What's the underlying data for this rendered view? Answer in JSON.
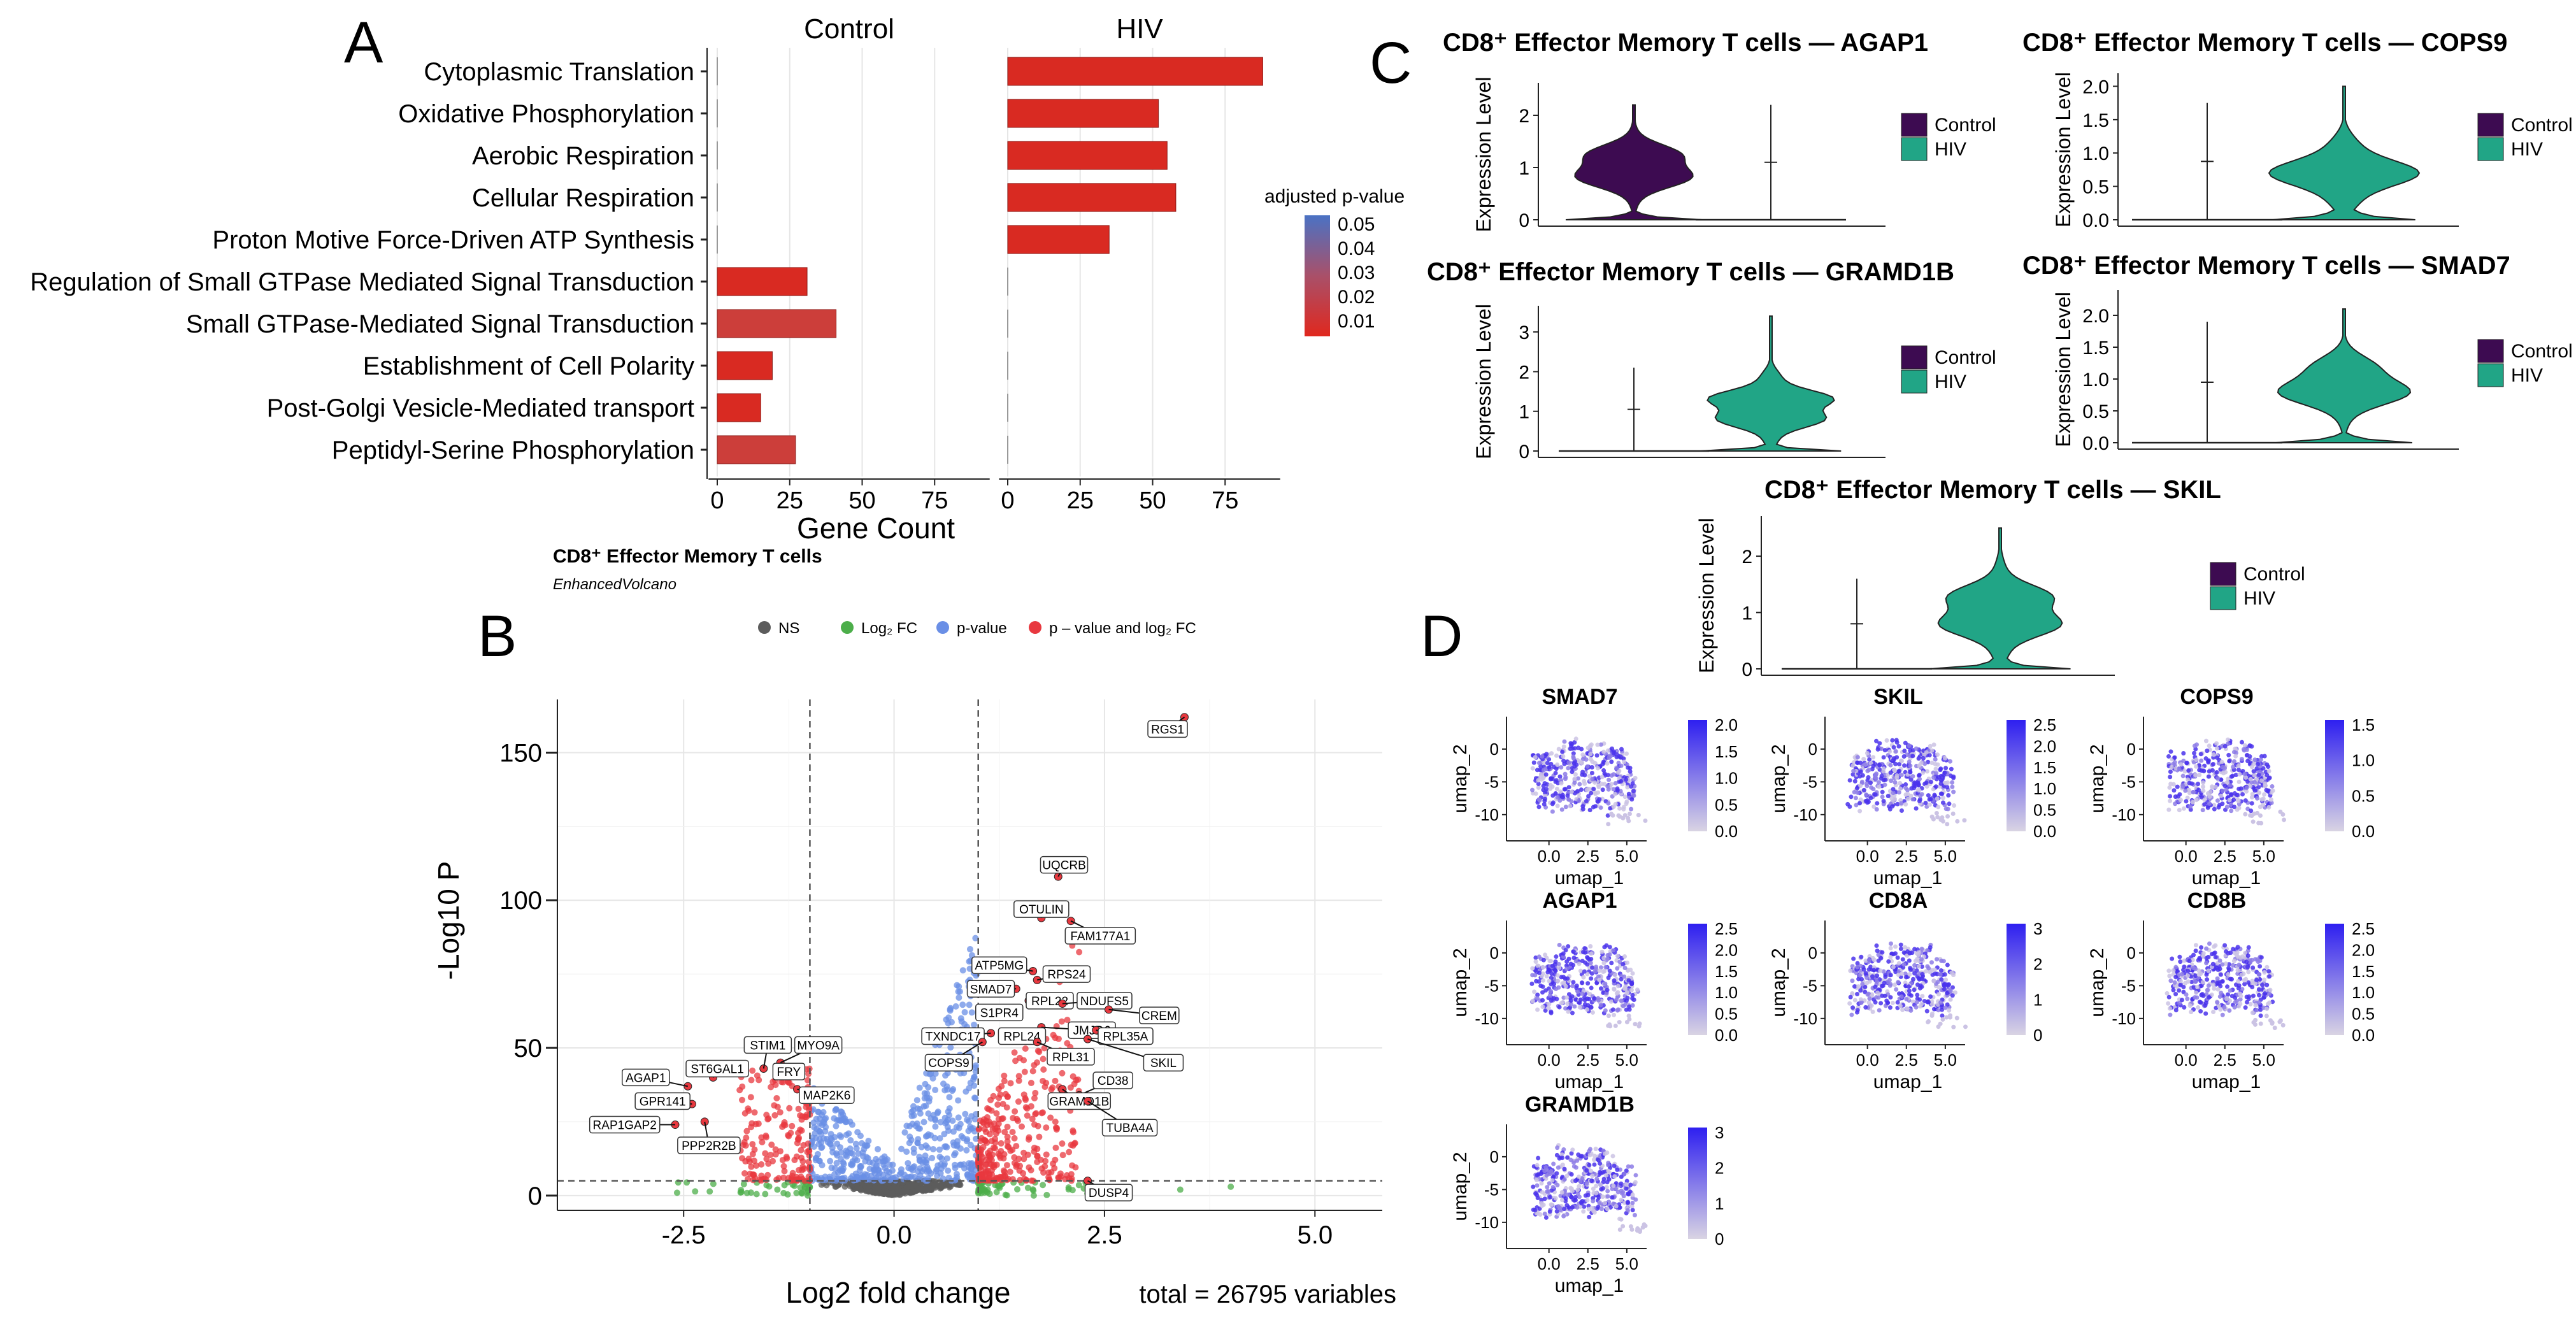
{
  "colors": {
    "bar_sig": "#d92a22",
    "bar_mid": "#cc3e3a",
    "control": "#3d0b51",
    "hiv": "#21a586",
    "ns": "#5c5c5c",
    "log2fc": "#4cae4a",
    "pvalue": "#6a8fe6",
    "both": "#e8383f",
    "umap_hi": "#2e1ff0",
    "umap_lo": "#d9d4e3",
    "grid": "#e6e6e6"
  },
  "panel_labels": {
    "a": "A",
    "b": "B",
    "c": "C",
    "d": "D"
  },
  "chart_data": [
    {
      "type": "bar",
      "panel": "A",
      "facets": [
        "Control",
        "HIV"
      ],
      "categories": [
        "Cytoplasmic Translation",
        "Oxidative Phosphorylation",
        "Aerobic Respiration",
        "Cellular Respiration",
        "Proton Motive Force-Driven ATP Synthesis",
        "Regulation of Small GTPase Mediated Signal Transduction",
        "Small GTPase-Mediated Signal Transduction",
        "Establishment of Cell Polarity",
        "Post-Golgi Vesicle-Mediated transport",
        "Peptidyl-Serine Phosphorylation"
      ],
      "series": [
        {
          "name": "Control",
          "values": [
            0,
            0,
            0,
            0,
            0,
            31,
            41,
            19,
            15,
            27
          ],
          "padj": [
            null,
            null,
            null,
            null,
            null,
            0.012,
            0.02,
            0.013,
            0.013,
            0.018
          ]
        },
        {
          "name": "HIV",
          "values": [
            88,
            52,
            55,
            58,
            35,
            0,
            0,
            0,
            0,
            0
          ],
          "padj": [
            0.005,
            0.006,
            0.005,
            0.006,
            0.006,
            null,
            null,
            null,
            null,
            null
          ]
        }
      ],
      "xlabel": "Gene Count",
      "xticks": [
        0,
        25,
        50,
        75
      ],
      "xlim": [
        -3,
        94
      ],
      "legend": {
        "title": "adjusted p-value",
        "ticks": [
          "0.05",
          "0.04",
          "0.03",
          "0.02",
          "0.01"
        ],
        "position": "right"
      }
    },
    {
      "type": "scatter",
      "panel": "B",
      "title": "CD8⁺ Effector Memory T cells",
      "subtitle": "EnhancedVolcano",
      "legend": [
        "NS",
        "Log₂ FC",
        "p-value",
        "p – value and log₂ FC"
      ],
      "xlabel": "Log2 fold change",
      "ylabel": "-Log10 P",
      "caption": "total = 26795 variables",
      "xlim": [
        -4.0,
        5.8
      ],
      "ylim": [
        -5,
        168
      ],
      "xticks": [
        "-2.5",
        "0.0",
        "2.5",
        "5.0"
      ],
      "yticks": [
        "0",
        "50",
        "100",
        "150"
      ],
      "fc_cutoffs": [
        -1,
        1
      ],
      "p_cutoff": 5,
      "labeled_genes": [
        {
          "gene": "RGS1",
          "x": 3.45,
          "y": 162,
          "lx": 3.25,
          "ly": 158
        },
        {
          "gene": "UQCRB",
          "x": 1.95,
          "y": 108,
          "lx": 2.02,
          "ly": 112
        },
        {
          "gene": "OTULIN",
          "x": 1.75,
          "y": 94,
          "lx": 1.75,
          "ly": 97
        },
        {
          "gene": "FAM177A1",
          "x": 2.1,
          "y": 93,
          "lx": 2.45,
          "ly": 88
        },
        {
          "gene": "ATP5MG",
          "x": 1.65,
          "y": 76,
          "lx": 1.25,
          "ly": 78
        },
        {
          "gene": "RPS24",
          "x": 1.7,
          "y": 73,
          "lx": 2.05,
          "ly": 75
        },
        {
          "gene": "SMAD7",
          "x": 1.45,
          "y": 70,
          "lx": 1.15,
          "ly": 70
        },
        {
          "gene": "RPL22",
          "x": 1.6,
          "y": 66,
          "lx": 1.85,
          "ly": 66
        },
        {
          "gene": "NDUFS5",
          "x": 2.0,
          "y": 65,
          "lx": 2.5,
          "ly": 66
        },
        {
          "gene": "S1PR4",
          "x": 1.45,
          "y": 63,
          "lx": 1.25,
          "ly": 62
        },
        {
          "gene": "CREM",
          "x": 2.55,
          "y": 63,
          "lx": 3.15,
          "ly": 61
        },
        {
          "gene": "JMJD6",
          "x": 1.75,
          "y": 57,
          "lx": 2.35,
          "ly": 56
        },
        {
          "gene": "TXNDC17",
          "x": 1.15,
          "y": 55,
          "lx": 0.7,
          "ly": 54
        },
        {
          "gene": "RPL24",
          "x": 1.4,
          "y": 55,
          "lx": 1.52,
          "ly": 54
        },
        {
          "gene": "RPL35A",
          "x": 2.4,
          "y": 56,
          "lx": 2.75,
          "ly": 54
        },
        {
          "gene": "COPS9",
          "x": 1.05,
          "y": 52,
          "lx": 0.65,
          "ly": 45
        },
        {
          "gene": "RPL31",
          "x": 1.7,
          "y": 52,
          "lx": 2.1,
          "ly": 47
        },
        {
          "gene": "SKIL",
          "x": 2.3,
          "y": 53,
          "lx": 3.2,
          "ly": 45
        },
        {
          "gene": "CD38",
          "x": 2.2,
          "y": 34,
          "lx": 2.6,
          "ly": 39
        },
        {
          "gene": "GRAMD1B",
          "x": 2.0,
          "y": 36,
          "lx": 2.2,
          "ly": 32
        },
        {
          "gene": "TUBA4A",
          "x": 2.3,
          "y": 32,
          "lx": 2.8,
          "ly": 23
        },
        {
          "gene": "DUSP4",
          "x": 2.3,
          "y": 5,
          "lx": 2.55,
          "ly": 1
        },
        {
          "gene": "STIM1",
          "x": -1.55,
          "y": 43,
          "lx": -1.5,
          "ly": 51
        },
        {
          "gene": "MYO9A",
          "x": -1.35,
          "y": 45,
          "lx": -0.9,
          "ly": 51
        },
        {
          "gene": "ST6GAL1",
          "x": -2.15,
          "y": 40,
          "lx": -2.1,
          "ly": 43
        },
        {
          "gene": "FRY",
          "x": -1.3,
          "y": 41,
          "lx": -1.25,
          "ly": 42
        },
        {
          "gene": "AGAP1",
          "x": -2.45,
          "y": 37,
          "lx": -2.95,
          "ly": 40
        },
        {
          "gene": "MAP2K6",
          "x": -1.15,
          "y": 36,
          "lx": -0.8,
          "ly": 34
        },
        {
          "gene": "GPR141",
          "x": -2.4,
          "y": 31,
          "lx": -2.75,
          "ly": 32
        },
        {
          "gene": "RAP1GAP2",
          "x": -2.6,
          "y": 24,
          "lx": -3.2,
          "ly": 24
        },
        {
          "gene": "PPP2R2B",
          "x": -2.25,
          "y": 25,
          "lx": -2.2,
          "ly": 17
        }
      ]
    },
    {
      "type": "violin",
      "panel": "C",
      "ylabel": "Expression Level",
      "legend": [
        "Control",
        "HIV"
      ],
      "plots": [
        {
          "title": "CD8⁺ Effector Memory T cells — AGAP1",
          "yticks": [
            "0",
            "1",
            "2"
          ],
          "ymax": 2.5,
          "control": {
            "max": 2.2,
            "mode": 1.0,
            "spread": 0.45
          },
          "hiv": {
            "max": 2.2,
            "mode": 0.0,
            "spread": 0.05
          }
        },
        {
          "title": "CD8⁺ Effector Memory T cells — COPS9",
          "yticks": [
            "0.0",
            "0.5",
            "1.0",
            "1.5",
            "2.0"
          ],
          "ymax": 2.1,
          "control": {
            "max": 1.75,
            "mode": 0.0,
            "spread": 0.05
          },
          "hiv": {
            "max": 2.0,
            "mode": 0.7,
            "spread": 0.4
          }
        },
        {
          "title": "CD8⁺ Effector Memory T cells — GRAMD1B",
          "yticks": [
            "0",
            "1",
            "2",
            "3"
          ],
          "ymax": 3.5,
          "control": {
            "max": 2.1,
            "mode": 0.0,
            "spread": 0.05
          },
          "hiv": {
            "max": 3.4,
            "mode": 1.1,
            "spread": 0.6
          }
        },
        {
          "title": "CD8⁺ Effector Memory T cells — SMAD7",
          "yticks": [
            "0.0",
            "0.5",
            "1.0",
            "1.5",
            "2.0"
          ],
          "ymax": 2.3,
          "control": {
            "max": 1.9,
            "mode": 0.0,
            "spread": 0.05
          },
          "hiv": {
            "max": 2.1,
            "mode": 0.9,
            "spread": 0.4
          }
        },
        {
          "title": "CD8⁺ Effector Memory T cells — SKIL",
          "yticks": [
            "0",
            "1",
            "2"
          ],
          "ymax": 2.6,
          "control": {
            "max": 1.6,
            "mode": 0.0,
            "spread": 0.05
          },
          "hiv": {
            "max": 2.5,
            "mode": 1.0,
            "spread": 0.55
          }
        }
      ]
    },
    {
      "type": "scatter",
      "panel": "D",
      "xlabel": "umap_1",
      "ylabel": "umap_2",
      "xticks": [
        "0.0",
        "2.5",
        "5.0"
      ],
      "yticks": [
        "0",
        "-5",
        "-10"
      ],
      "genes": [
        {
          "title": "SMAD7",
          "scale": [
            "2.0",
            "1.5",
            "1.0",
            "0.5",
            "0.0"
          ]
        },
        {
          "title": "SKIL",
          "scale": [
            "2.5",
            "2.0",
            "1.5",
            "1.0",
            "0.5",
            "0.0"
          ]
        },
        {
          "title": "COPS9",
          "scale": [
            "1.5",
            "1.0",
            "0.5",
            "0.0"
          ]
        },
        {
          "title": "AGAP1",
          "scale": [
            "2.5",
            "2.0",
            "1.5",
            "1.0",
            "0.5",
            "0.0"
          ]
        },
        {
          "title": "CD8A",
          "scale": [
            "3",
            "2",
            "1",
            "0"
          ]
        },
        {
          "title": "CD8B",
          "scale": [
            "2.5",
            "2.0",
            "1.5",
            "1.0",
            "0.5",
            "0.0"
          ]
        },
        {
          "title": "GRAMD1B",
          "scale": [
            "3",
            "2",
            "1",
            "0"
          ]
        }
      ]
    }
  ]
}
